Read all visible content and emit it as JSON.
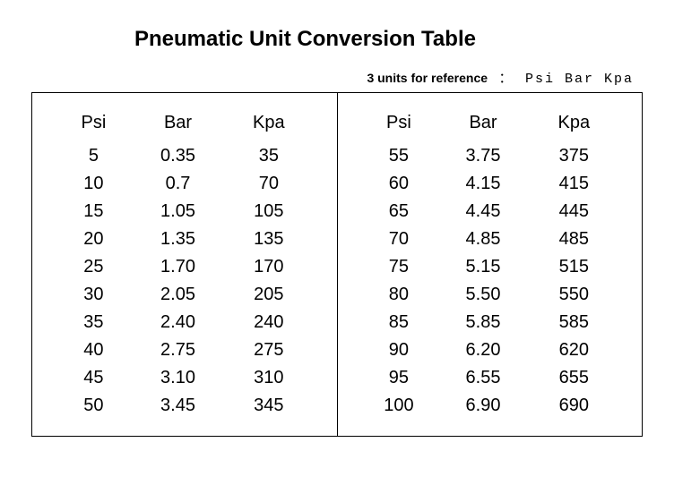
{
  "title": "Pneumatic Unit Conversion Table",
  "subtitle_bold": "3 units for reference",
  "subtitle_colon": "：",
  "subtitle_units": "Psi Bar Kpa",
  "headers": {
    "psi": "Psi",
    "bar": "Bar",
    "kpa": "Kpa"
  },
  "left_table": {
    "rows": [
      {
        "psi": "5",
        "bar": "0.35",
        "kpa": "35"
      },
      {
        "psi": "10",
        "bar": "0.7",
        "kpa": "70"
      },
      {
        "psi": "15",
        "bar": "1.05",
        "kpa": "105"
      },
      {
        "psi": "20",
        "bar": "1.35",
        "kpa": "135"
      },
      {
        "psi": "25",
        "bar": "1.70",
        "kpa": "170"
      },
      {
        "psi": "30",
        "bar": "2.05",
        "kpa": "205"
      },
      {
        "psi": "35",
        "bar": "2.40",
        "kpa": "240"
      },
      {
        "psi": "40",
        "bar": "2.75",
        "kpa": "275"
      },
      {
        "psi": "45",
        "bar": "3.10",
        "kpa": "310"
      },
      {
        "psi": "50",
        "bar": "3.45",
        "kpa": "345"
      }
    ]
  },
  "right_table": {
    "rows": [
      {
        "psi": "55",
        "bar": "3.75",
        "kpa": "375"
      },
      {
        "psi": "60",
        "bar": "4.15",
        "kpa": "415"
      },
      {
        "psi": "65",
        "bar": "4.45",
        "kpa": "445"
      },
      {
        "psi": "70",
        "bar": "4.85",
        "kpa": "485"
      },
      {
        "psi": "75",
        "bar": "5.15",
        "kpa": "515"
      },
      {
        "psi": "80",
        "bar": "5.50",
        "kpa": "550"
      },
      {
        "psi": "85",
        "bar": "5.85",
        "kpa": "585"
      },
      {
        "psi": "90",
        "bar": "6.20",
        "kpa": "620"
      },
      {
        "psi": "95",
        "bar": "6.55",
        "kpa": "655"
      },
      {
        "psi": "100",
        "bar": "6.90",
        "kpa": "690"
      }
    ]
  },
  "styling": {
    "background_color": "#ffffff",
    "text_color": "#000000",
    "border_color": "#000000",
    "title_fontsize": 24,
    "cell_fontsize": 20,
    "subtitle_fontsize": 14
  }
}
